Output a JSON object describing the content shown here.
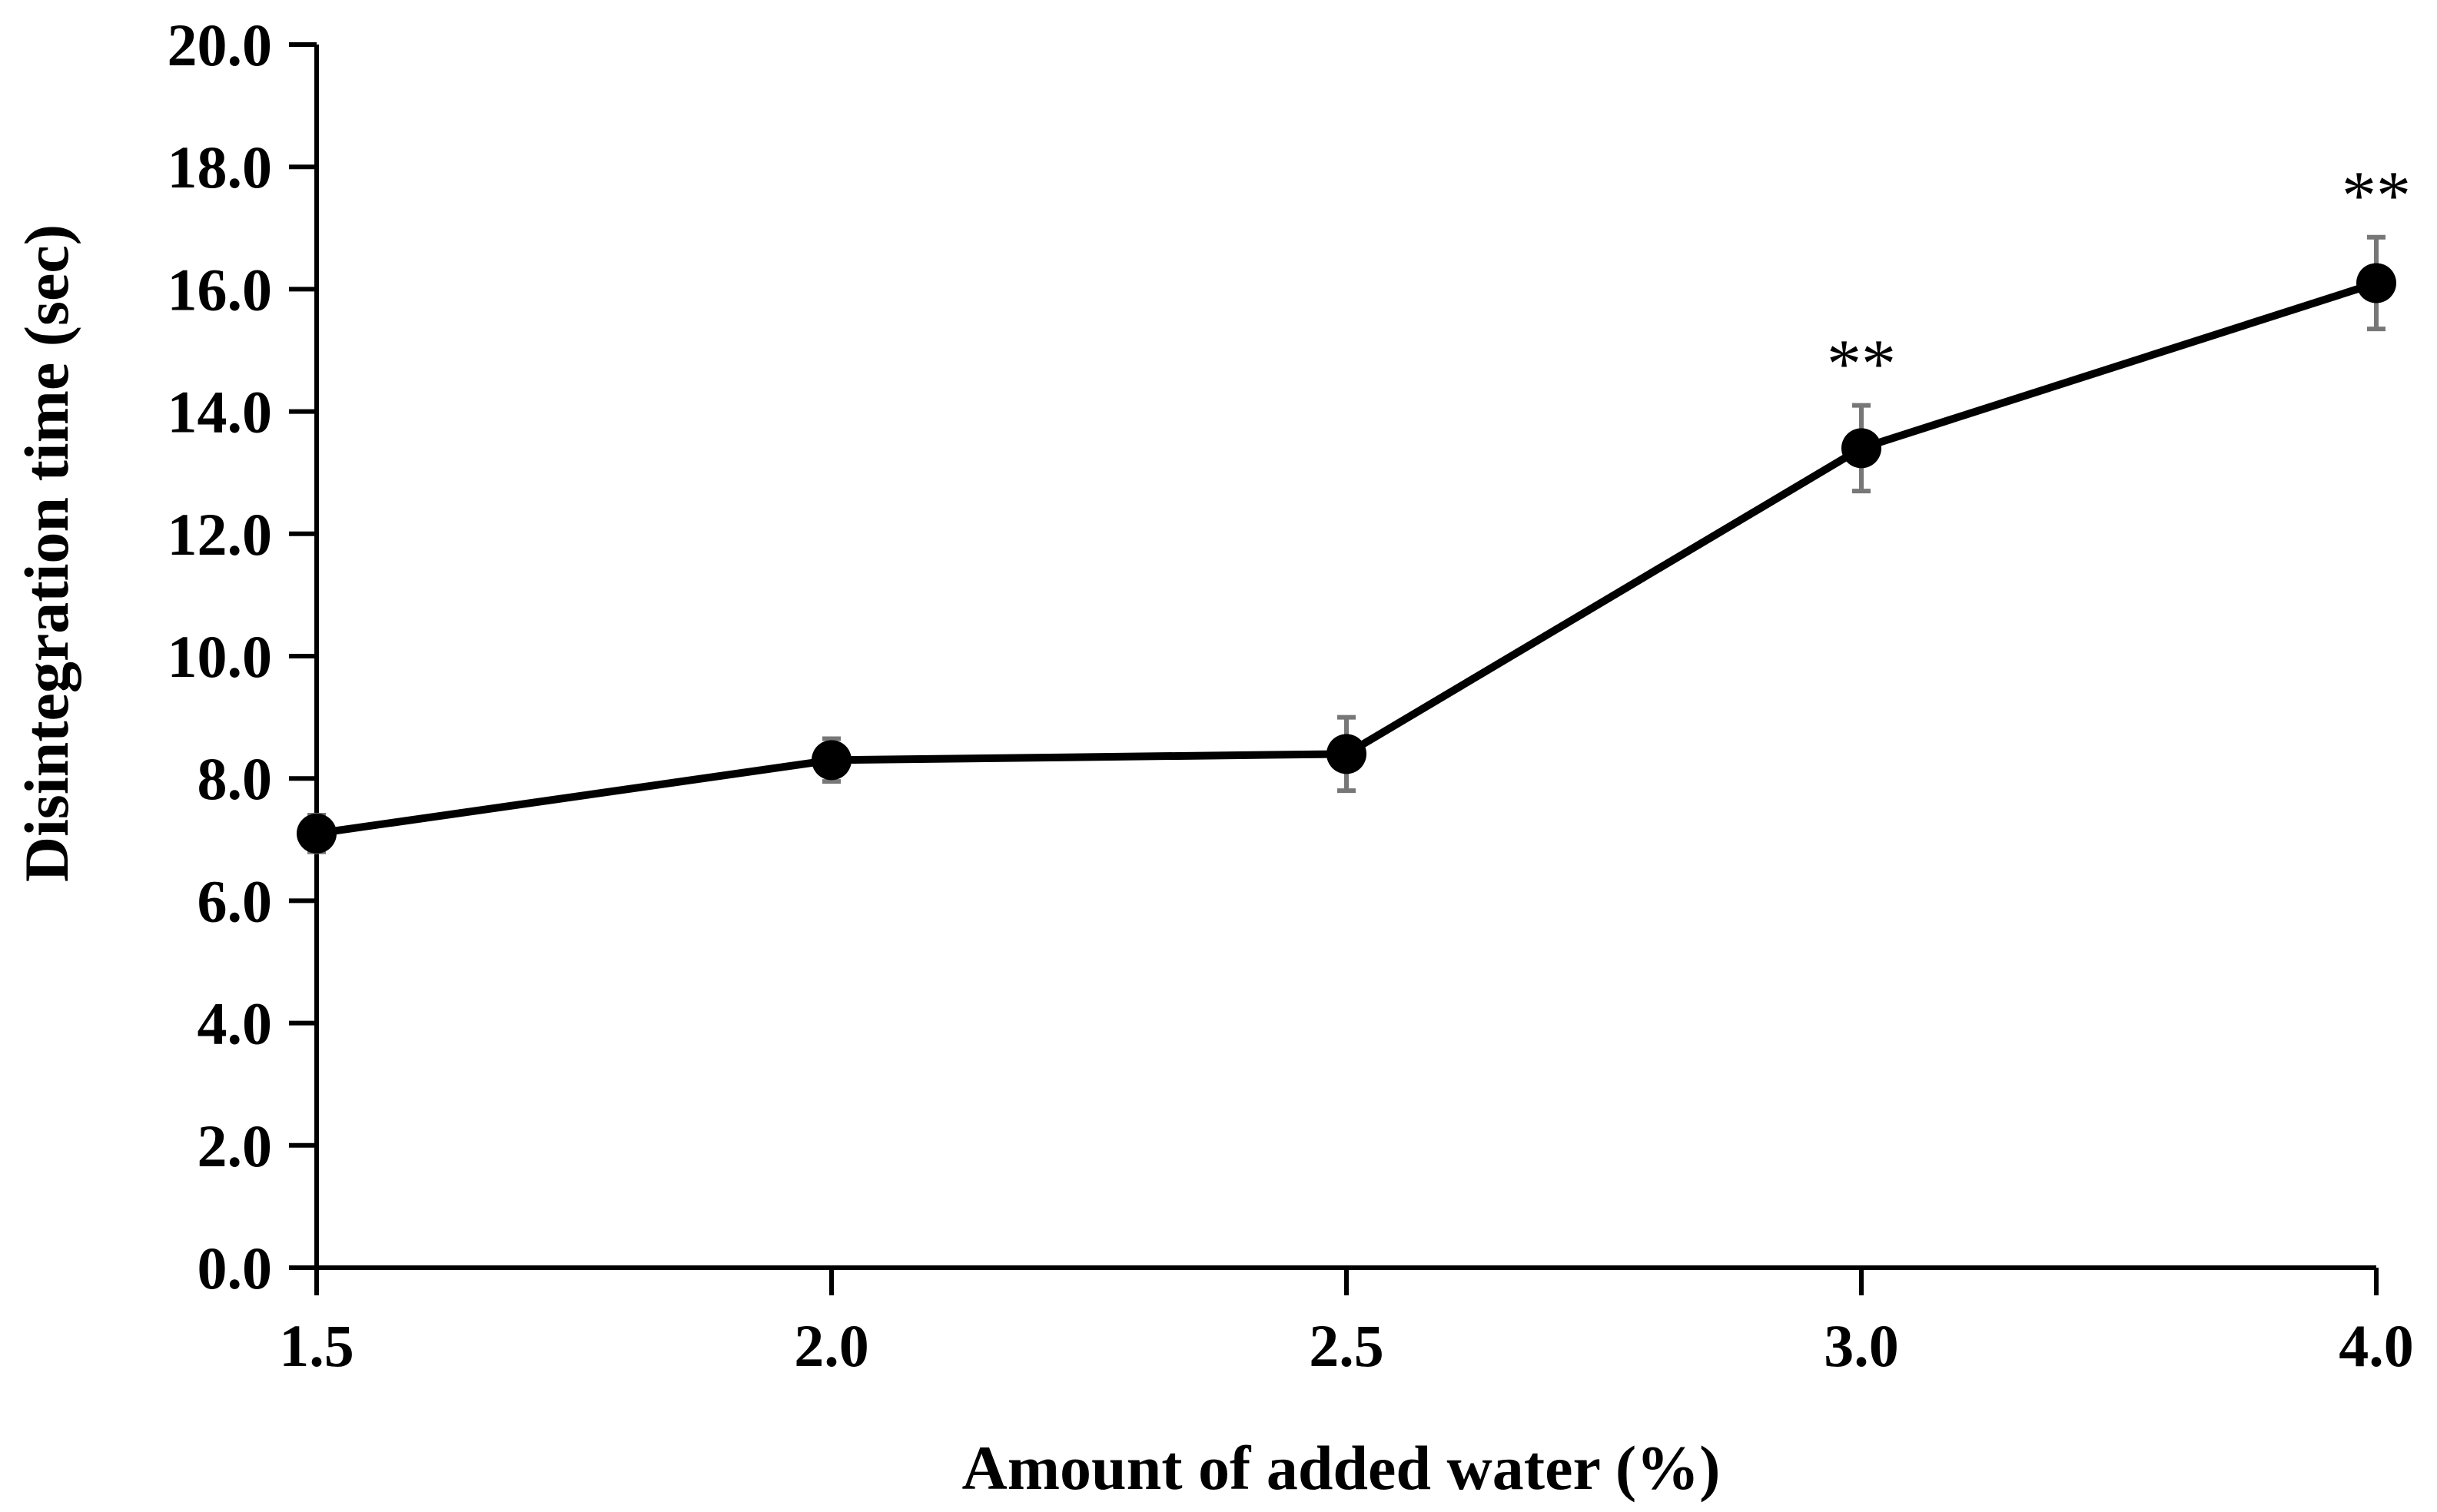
{
  "chart_data": {
    "type": "line",
    "title": "",
    "xlabel": "Amount of added water (%)",
    "ylabel": "Disintegration time (sec)",
    "categories": [
      "1.5",
      "2.0",
      "2.5",
      "3.0",
      "4.0"
    ],
    "ylim": [
      0,
      20
    ],
    "yticks": [
      "0.0",
      "2.0",
      "4.0",
      "6.0",
      "8.0",
      "10.0",
      "12.0",
      "14.0",
      "16.0",
      "18.0",
      "20.0"
    ],
    "series": [
      {
        "name": "Disintegration time",
        "values": [
          7.1,
          8.3,
          8.4,
          13.4,
          16.1
        ],
        "errors": [
          0.3,
          0.35,
          0.6,
          0.7,
          0.75
        ],
        "annotations": [
          "",
          "",
          "",
          "**",
          "**"
        ]
      }
    ],
    "grid": false,
    "colors": {
      "line": "#000000",
      "marker": "#000000",
      "error_bar": "#777777"
    }
  }
}
